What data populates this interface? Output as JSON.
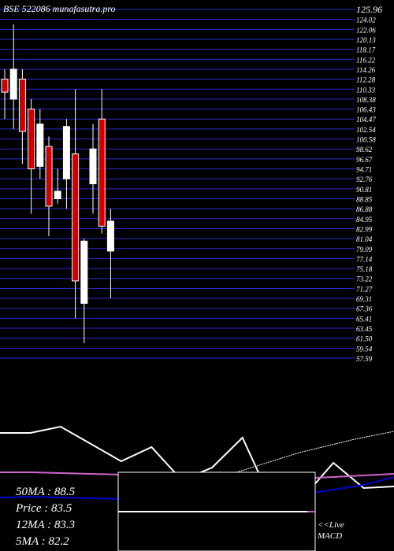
{
  "header": {
    "title": "BSE 522086  munafasutra.pro"
  },
  "chart_data": [
    {
      "type": "candlestick",
      "title": "BSE 522086  munafasutra.pro",
      "ylim": [
        56,
        126
      ],
      "price_labels_top": "125.96",
      "y_tick_labels": [
        "125.96",
        "124.02",
        "122.06",
        "120.13",
        "118.17",
        "116.22",
        "114.26",
        "112.28",
        "110.33",
        "108.38",
        "106.43",
        "104.47",
        "102.54",
        "100.58",
        "98.62",
        "96.67",
        "94.71",
        "92.76",
        "90.81",
        "88.85",
        "86.88",
        "84.95",
        "82.99",
        "81.04",
        "79.09",
        "77.14",
        "75.18",
        "73.22",
        "71.27",
        "69.31",
        "67.36",
        "65.41",
        "63.45",
        "61.50",
        "59.54",
        "57.59"
      ],
      "candles": [
        {
          "open": 112.0,
          "close": 109.4,
          "high": 114.0,
          "low": 104.0,
          "color": "red"
        },
        {
          "open": 108.0,
          "close": 114.0,
          "high": 123.0,
          "low": 102.0,
          "color": "white"
        },
        {
          "open": 112.0,
          "close": 101.5,
          "high": 114.0,
          "low": 95.0,
          "color": "red"
        },
        {
          "open": 106.0,
          "close": 94.0,
          "high": 108.0,
          "low": 85.0,
          "color": "red"
        },
        {
          "open": 94.5,
          "close": 103.0,
          "high": 106.0,
          "low": 92.0,
          "color": "white"
        },
        {
          "open": 98.5,
          "close": 86.5,
          "high": 100.5,
          "low": 80.5,
          "color": "red"
        },
        {
          "open": 88.0,
          "close": 89.5,
          "high": 94.0,
          "low": 87.0,
          "color": "white"
        },
        {
          "open": 92.0,
          "close": 102.5,
          "high": 104.0,
          "low": 86.0,
          "color": "white"
        },
        {
          "open": 97.0,
          "close": 71.5,
          "high": 110.0,
          "low": 64.0,
          "color": "red"
        },
        {
          "open": 67.0,
          "close": 79.5,
          "high": 80.0,
          "low": 59.0,
          "color": "white"
        },
        {
          "open": 91.0,
          "close": 98.0,
          "high": 103.0,
          "low": 85.0,
          "color": "white"
        },
        {
          "open": 104.0,
          "close": 82.5,
          "high": 110.0,
          "low": 81.0,
          "color": "red"
        },
        {
          "open": 77.5,
          "close": 83.5,
          "high": 86.0,
          "low": 68.0,
          "color": "white"
        }
      ],
      "macd_lines": [
        {
          "color": "#ffffff",
          "values": [
            1.5,
            1.5,
            1.9,
            0.8,
            -0.3,
            0.6,
            -1.5,
            -0.7,
            1.2,
            -3.0,
            -2.6,
            -0.4,
            -2.0,
            -1.9
          ]
        },
        {
          "color": "#cc66cc",
          "values": [
            -1.0,
            -1.0,
            -1.05,
            -1.1,
            -1.15,
            -1.2,
            -1.3,
            -1.35,
            -1.4,
            -1.4,
            -1.38,
            -1.3,
            -1.2,
            -1.1
          ]
        },
        {
          "color": "#0000cc",
          "values": [
            -2.6,
            -2.55,
            -2.6,
            -2.65,
            -2.7,
            -2.7,
            -2.75,
            -2.8,
            -2.7,
            -2.6,
            -2.4,
            -2.1,
            -1.8,
            -1.3
          ]
        }
      ]
    }
  ],
  "moving_averages": {
    "ma50": "50MA : 88.5",
    "price": "Price  : 83.5",
    "ma12": "12MA : 83.3",
    "ma5": "5MA : 82.2"
  },
  "macd_label": {
    "line1": "<<Live",
    "line2": "MACD"
  }
}
